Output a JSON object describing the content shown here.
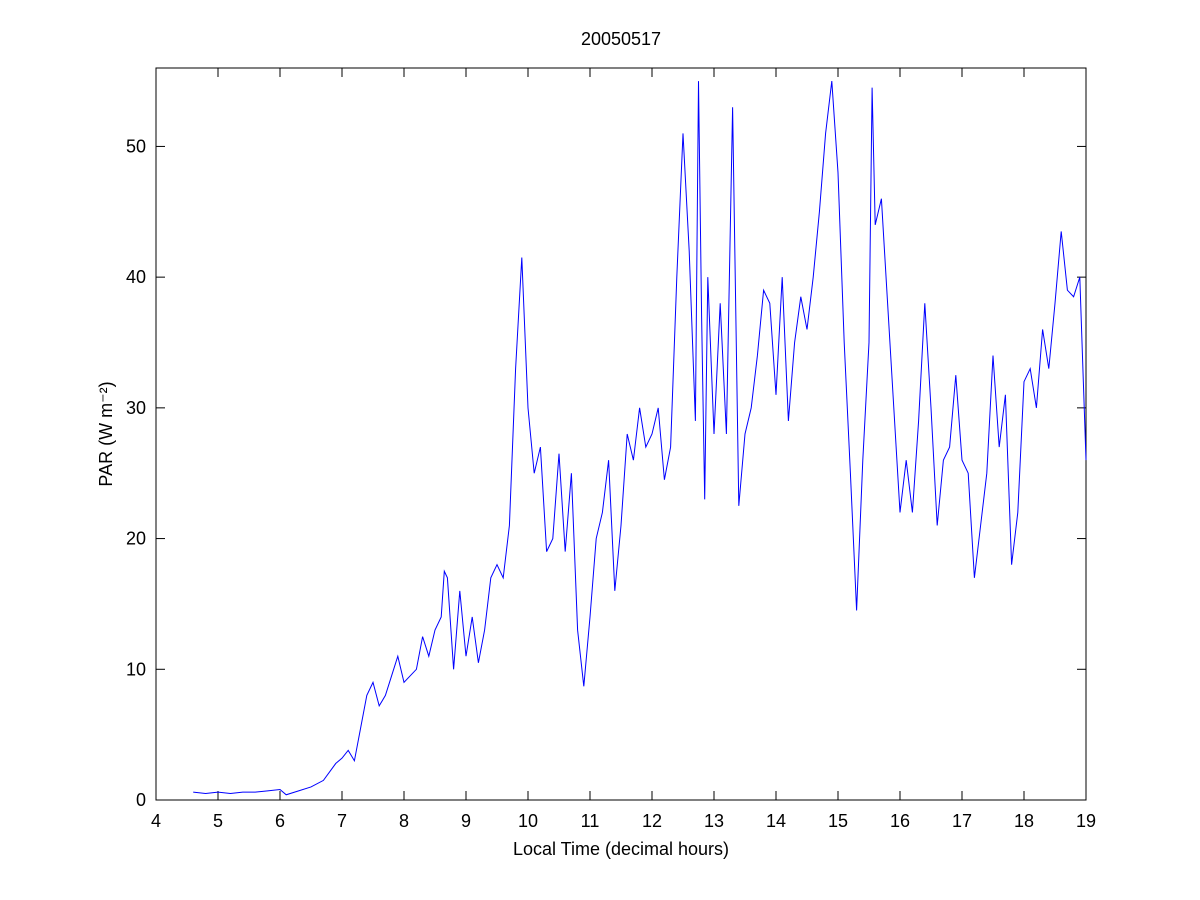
{
  "chart_data": {
    "type": "line",
    "title": "20050517",
    "xlabel": "Local Time (decimal hours)",
    "ylabel": "PAR (W m⁻²)",
    "xlim": [
      4,
      19
    ],
    "ylim": [
      0,
      56
    ],
    "xticks": [
      4,
      5,
      6,
      7,
      8,
      9,
      10,
      11,
      12,
      13,
      14,
      15,
      16,
      17,
      18,
      19
    ],
    "yticks": [
      0,
      10,
      20,
      30,
      40,
      50
    ],
    "x": [
      4.6,
      4.8,
      5.0,
      5.2,
      5.4,
      5.6,
      5.8,
      6.0,
      6.1,
      6.3,
      6.5,
      6.7,
      6.9,
      7.0,
      7.1,
      7.2,
      7.3,
      7.4,
      7.5,
      7.6,
      7.7,
      7.8,
      7.9,
      8.0,
      8.1,
      8.2,
      8.3,
      8.4,
      8.5,
      8.6,
      8.65,
      8.7,
      8.8,
      8.9,
      9.0,
      9.1,
      9.2,
      9.3,
      9.4,
      9.5,
      9.6,
      9.7,
      9.8,
      9.9,
      10.0,
      10.1,
      10.2,
      10.3,
      10.4,
      10.5,
      10.6,
      10.7,
      10.8,
      10.9,
      11.0,
      11.1,
      11.2,
      11.3,
      11.4,
      11.5,
      11.6,
      11.7,
      11.8,
      11.9,
      12.0,
      12.1,
      12.2,
      12.3,
      12.4,
      12.5,
      12.6,
      12.7,
      12.75,
      12.8,
      12.85,
      12.9,
      13.0,
      13.1,
      13.2,
      13.3,
      13.4,
      13.5,
      13.6,
      13.7,
      13.8,
      13.9,
      14.0,
      14.1,
      14.2,
      14.3,
      14.4,
      14.5,
      14.6,
      14.7,
      14.8,
      14.9,
      15.0,
      15.1,
      15.2,
      15.3,
      15.4,
      15.5,
      15.55,
      15.6,
      15.7,
      15.8,
      15.9,
      16.0,
      16.1,
      16.2,
      16.3,
      16.4,
      16.5,
      16.6,
      16.7,
      16.8,
      16.9,
      17.0,
      17.1,
      17.2,
      17.3,
      17.4,
      17.5,
      17.6,
      17.7,
      17.8,
      17.9,
      18.0,
      18.1,
      18.2,
      18.3,
      18.4,
      18.5,
      18.6,
      18.7,
      18.8,
      18.9,
      19.0
    ],
    "series": [
      {
        "color": "#0000ff",
        "values": [
          0.6,
          0.5,
          0.6,
          0.5,
          0.6,
          0.6,
          0.7,
          0.8,
          0.4,
          0.7,
          1.0,
          1.5,
          2.8,
          3.2,
          3.8,
          3.0,
          5.5,
          8,
          9,
          7.2,
          8,
          9.5,
          11,
          9,
          9.5,
          10,
          12.5,
          11,
          13,
          14,
          17.5,
          17,
          10,
          16,
          11,
          14,
          10.5,
          13,
          17,
          18,
          17,
          21,
          33,
          41.5,
          30,
          25,
          27,
          19,
          20,
          26.5,
          19,
          25,
          13,
          8.7,
          14,
          20,
          22,
          26,
          16,
          21,
          28,
          26,
          30,
          27,
          28,
          30,
          24.5,
          27,
          40,
          51,
          42,
          29,
          55,
          37,
          23,
          40,
          28,
          38,
          28,
          53,
          22.5,
          28,
          30,
          34,
          39,
          38,
          31,
          40,
          29,
          35,
          38.5,
          36,
          40,
          45,
          51,
          55,
          48,
          35,
          25,
          14.5,
          26,
          35,
          54.5,
          44,
          46,
          38,
          30,
          22,
          26,
          22,
          29,
          38,
          30,
          21,
          26,
          27,
          32.5,
          26,
          25,
          17,
          21,
          25,
          34,
          27,
          31,
          18,
          22,
          32,
          33,
          30,
          36,
          33,
          38,
          43.5,
          39,
          38.5,
          40,
          26
        ]
      }
    ]
  }
}
